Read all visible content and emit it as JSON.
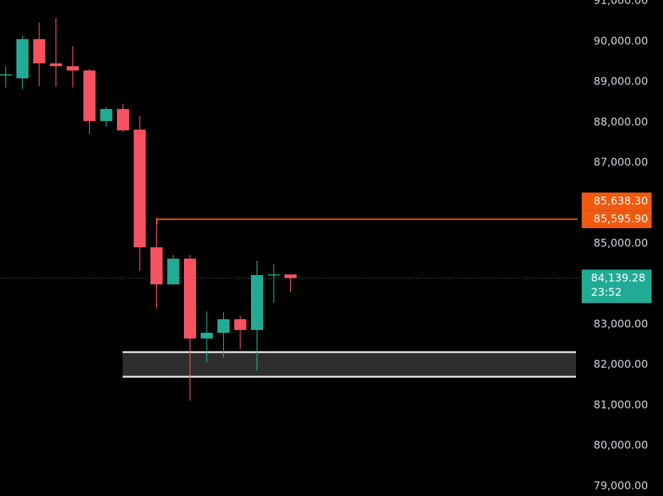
{
  "chart_data": {
    "type": "candlestick",
    "open": [
      89160,
      89083,
      90053,
      89453,
      89383,
      89277,
      88025,
      88324,
      87813,
      84903,
      83986,
      84621,
      82646,
      82787,
      83122,
      82857,
      84215,
      84232
    ],
    "high": [
      89383,
      90141,
      90459,
      90582,
      89877,
      89312,
      88377,
      88448,
      88148,
      85644,
      84709,
      84709,
      83316,
      83298,
      83210,
      84568,
      84497,
      84232
    ],
    "low": [
      88854,
      88818,
      88889,
      88871,
      88854,
      87707,
      87884,
      87760,
      84321,
      83386,
      83968,
      81111,
      82063,
      82169,
      82381,
      81852,
      83527,
      83792
    ],
    "close": [
      89180,
      90053,
      89453,
      89383,
      89277,
      88025,
      88324,
      87795,
      84903,
      83986,
      84621,
      82646,
      82787,
      83122,
      82857,
      84215,
      84232,
      84139.28
    ],
    "up_color": "#22ab94",
    "down_color": "#f7525f",
    "ylim": [
      78750,
      91020
    ],
    "yticks": [
      {
        "value": 79000,
        "label": "79,000.00"
      },
      {
        "value": 80000,
        "label": "80,000.00"
      },
      {
        "value": 81000,
        "label": "81,000.00"
      },
      {
        "value": 82000,
        "label": "82,000.00"
      },
      {
        "value": 83000,
        "label": "83,000.00"
      },
      {
        "value": 85000,
        "label": "85,000.00"
      },
      {
        "value": 87000,
        "label": "87,000.00"
      },
      {
        "value": 88000,
        "label": "88,000.00"
      },
      {
        "value": 89000,
        "label": "89,000.00"
      },
      {
        "value": 90000,
        "label": "90,000.00"
      },
      {
        "value": 91000,
        "label": "91,000.00"
      }
    ],
    "price_markers": [
      {
        "value": 85638.3,
        "label": "85,638.30"
      },
      {
        "value": 85595.9,
        "label": "85,595.90"
      }
    ],
    "marker_color": "#f0590e",
    "current_price": {
      "value": 84139.28,
      "label": "84,139.28",
      "countdown": "23:52"
    },
    "zone": {
      "low": 81700,
      "high": 82310
    }
  }
}
